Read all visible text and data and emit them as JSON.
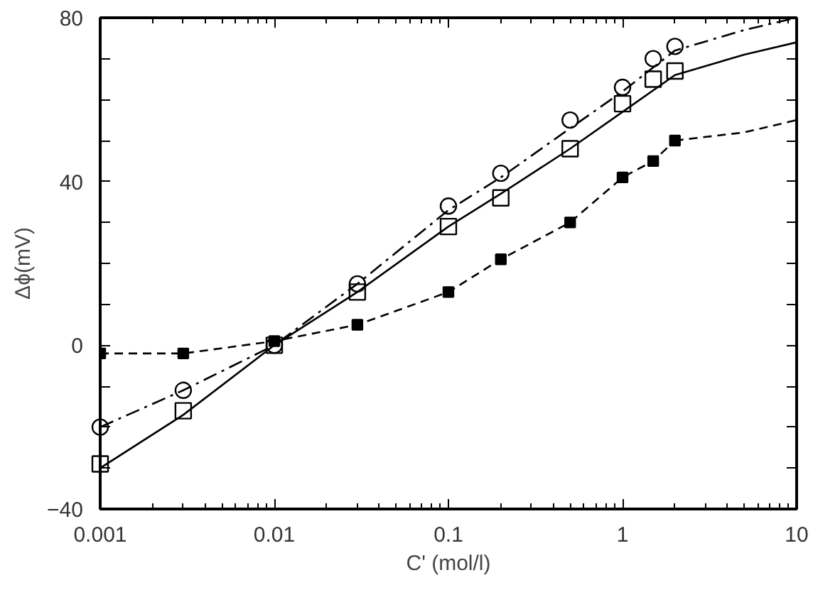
{
  "chart_data": {
    "type": "scatter",
    "xlabel": "C' (mol/l)",
    "ylabel": "Δϕ(mV)",
    "log": "x",
    "grid": false,
    "xlim": [
      0.001,
      10
    ],
    "xticks": [
      0.001,
      0.01,
      0.1,
      1,
      10
    ],
    "ylim": [
      -40,
      80
    ],
    "yticks": [
      -40,
      {
        "value": -30,
        "label": null
      },
      {
        "value": -20,
        "label": null
      },
      {
        "value": -10,
        "label": null
      },
      0,
      {
        "value": 10,
        "label": null
      },
      {
        "value": 20,
        "label": null
      },
      {
        "value": 30,
        "label": null
      },
      40,
      {
        "value": 50,
        "label": null
      },
      {
        "value": 60,
        "label": null
      },
      {
        "value": 70,
        "label": null
      },
      80
    ],
    "series": [
      {
        "marker": "circle",
        "color": "#000000",
        "x": [
          0.001,
          0.003,
          0.01,
          0.03,
          0.1,
          0.2,
          0.5,
          1,
          1.5,
          2
        ],
        "values": [
          -20,
          -11,
          null,
          15,
          34,
          42,
          55,
          63,
          70,
          73
        ]
      },
      {
        "marker": "square",
        "color": "#000000",
        "x": [
          0.001,
          0.003,
          0.01,
          0.03,
          0.1,
          0.2,
          0.5,
          1,
          1.5,
          2
        ],
        "values": [
          -29,
          -16,
          0,
          13,
          29,
          36,
          48,
          59,
          65,
          67
        ]
      },
      {
        "type": "line",
        "marker": "square",
        "line_style": "dashed",
        "color": "#000000",
        "x": [
          0.001,
          0.003,
          0.01,
          0.03,
          0.1,
          0.2,
          0.5,
          1,
          1.5,
          2
        ],
        "values": [
          -2,
          -2,
          1,
          5,
          13,
          21,
          30,
          41,
          45,
          50
        ]
      },
      {
        "type": "line",
        "marker": "none",
        "line_style": "dashdot",
        "color": "#000000",
        "x": [
          0.001,
          0.003,
          0.01,
          0.03,
          0.1,
          0.2,
          0.5,
          1,
          2,
          5,
          10
        ],
        "values": [
          -20,
          -11,
          0,
          15,
          33,
          41,
          53,
          62,
          72,
          77,
          80
        ]
      },
      {
        "type": "line",
        "marker": "none",
        "line_style": "solid",
        "color": "#000000",
        "x": [
          0.001,
          0.003,
          0.01,
          0.03,
          0.1,
          0.2,
          0.5,
          1,
          2,
          5,
          10
        ],
        "values": [
          -30,
          -17,
          0,
          13,
          29,
          37,
          48,
          57,
          66,
          71,
          74
        ]
      },
      {
        "type": "line",
        "marker": "none",
        "line_style": "dashed",
        "color": "#000000",
        "x": [
          2,
          5,
          10
        ],
        "values": [
          50,
          52,
          55
        ]
      }
    ]
  }
}
